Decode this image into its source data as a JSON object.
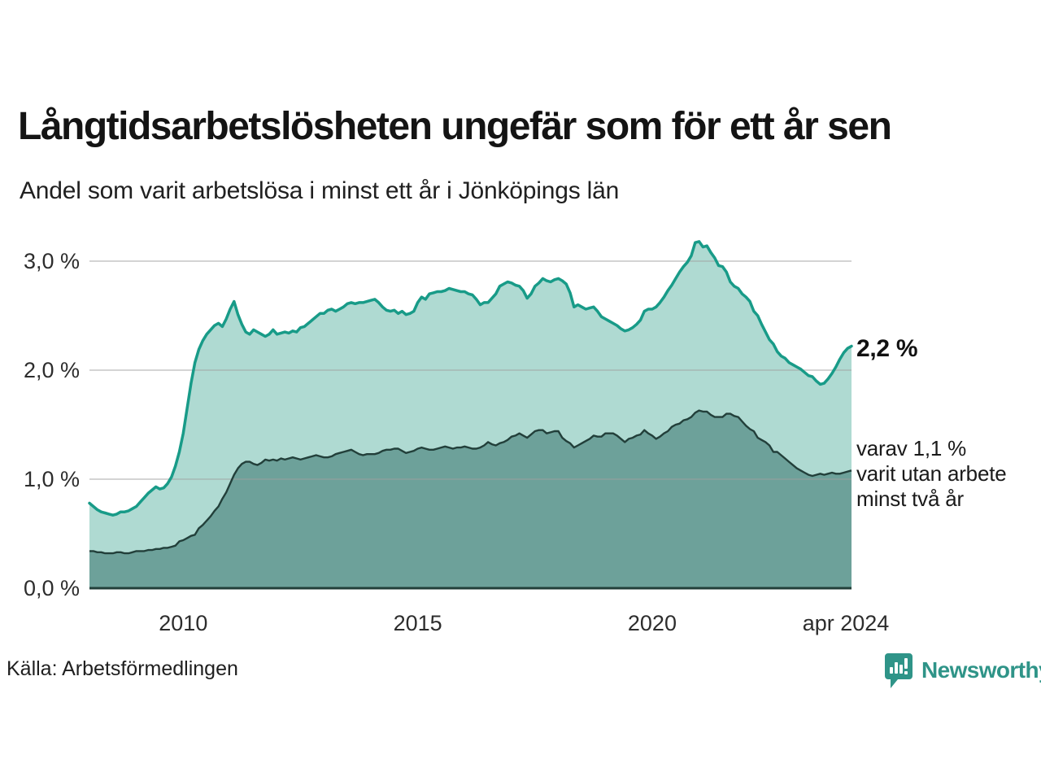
{
  "header": {
    "title": "Långtidsarbetslösheten ungefär som för ett år sen",
    "subtitle": "Andel som varit arbetslösa i minst ett år i Jönköpings län"
  },
  "chart_data": {
    "type": "area",
    "title": "Långtidsarbetslösheten ungefär som för ett år sen",
    "subtitle": "Andel som varit arbetslösa i minst ett år i Jönköpings län",
    "unit": "%",
    "x_start": "2008-01",
    "x_end": "2024-04",
    "x_tick_labels": [
      "2010",
      "2015",
      "2020",
      "apr 2024"
    ],
    "x_tick_month_indices": [
      24,
      84,
      144,
      195
    ],
    "y_tick_labels": [
      "0,0 %",
      "1,0 %",
      "2,0 %",
      "3,0 %"
    ],
    "y_tick_values": [
      0.0,
      1.0,
      2.0,
      3.0
    ],
    "grid_values": [
      1.0,
      2.0,
      3.0
    ],
    "ylim": [
      0,
      3.38
    ],
    "legend_position": "right-annotations",
    "grid": true,
    "colors": {
      "total_line": "#189b88",
      "total_fill": "#afdad2",
      "two_year_line": "#223f3a",
      "two_year_fill": "#6da19a",
      "gridline": "#d8d8d8"
    },
    "series": [
      {
        "name": "Andel arbetslösa minst ett år",
        "latest_label": "2,2 %",
        "values": [
          0.78,
          0.75,
          0.72,
          0.7,
          0.69,
          0.68,
          0.67,
          0.68,
          0.7,
          0.7,
          0.71,
          0.73,
          0.75,
          0.79,
          0.83,
          0.87,
          0.9,
          0.93,
          0.91,
          0.92,
          0.96,
          1.02,
          1.12,
          1.25,
          1.42,
          1.65,
          1.88,
          2.07,
          2.19,
          2.27,
          2.33,
          2.37,
          2.41,
          2.43,
          2.4,
          2.47,
          2.56,
          2.63,
          2.51,
          2.42,
          2.35,
          2.33,
          2.37,
          2.35,
          2.33,
          2.31,
          2.33,
          2.37,
          2.33,
          2.34,
          2.35,
          2.34,
          2.36,
          2.35,
          2.39,
          2.4,
          2.43,
          2.46,
          2.49,
          2.52,
          2.52,
          2.55,
          2.56,
          2.54,
          2.56,
          2.58,
          2.61,
          2.62,
          2.61,
          2.62,
          2.62,
          2.63,
          2.64,
          2.65,
          2.62,
          2.58,
          2.55,
          2.54,
          2.55,
          2.52,
          2.54,
          2.51,
          2.52,
          2.54,
          2.62,
          2.67,
          2.65,
          2.7,
          2.71,
          2.72,
          2.72,
          2.73,
          2.75,
          2.74,
          2.73,
          2.72,
          2.72,
          2.7,
          2.69,
          2.65,
          2.6,
          2.62,
          2.62,
          2.66,
          2.7,
          2.77,
          2.79,
          2.81,
          2.8,
          2.78,
          2.77,
          2.73,
          2.66,
          2.7,
          2.77,
          2.8,
          2.84,
          2.82,
          2.81,
          2.83,
          2.84,
          2.82,
          2.79,
          2.71,
          2.58,
          2.6,
          2.58,
          2.56,
          2.57,
          2.58,
          2.54,
          2.49,
          2.47,
          2.45,
          2.43,
          2.41,
          2.38,
          2.36,
          2.37,
          2.39,
          2.42,
          2.46,
          2.54,
          2.56,
          2.56,
          2.58,
          2.62,
          2.67,
          2.73,
          2.78,
          2.84,
          2.9,
          2.95,
          2.99,
          3.05,
          3.17,
          3.18,
          3.13,
          3.14,
          3.08,
          3.03,
          2.96,
          2.95,
          2.9,
          2.81,
          2.77,
          2.75,
          2.7,
          2.67,
          2.63,
          2.54,
          2.5,
          2.42,
          2.35,
          2.28,
          2.24,
          2.17,
          2.13,
          2.11,
          2.07,
          2.05,
          2.03,
          2.01,
          1.98,
          1.95,
          1.94,
          1.9,
          1.87,
          1.88,
          1.92,
          1.97,
          2.03,
          2.1,
          2.16,
          2.2,
          2.22
        ]
      },
      {
        "name": "Varav utan arbete minst två år",
        "latest_label": "1,1 %",
        "values": [
          0.34,
          0.34,
          0.33,
          0.33,
          0.32,
          0.32,
          0.32,
          0.33,
          0.33,
          0.32,
          0.32,
          0.33,
          0.34,
          0.34,
          0.34,
          0.35,
          0.35,
          0.36,
          0.36,
          0.37,
          0.37,
          0.38,
          0.39,
          0.43,
          0.44,
          0.46,
          0.48,
          0.49,
          0.55,
          0.58,
          0.62,
          0.66,
          0.71,
          0.75,
          0.82,
          0.88,
          0.96,
          1.04,
          1.1,
          1.14,
          1.16,
          1.16,
          1.14,
          1.13,
          1.15,
          1.18,
          1.17,
          1.18,
          1.17,
          1.19,
          1.18,
          1.19,
          1.2,
          1.19,
          1.18,
          1.19,
          1.2,
          1.21,
          1.22,
          1.21,
          1.2,
          1.2,
          1.21,
          1.23,
          1.24,
          1.25,
          1.26,
          1.27,
          1.25,
          1.23,
          1.22,
          1.23,
          1.23,
          1.23,
          1.24,
          1.26,
          1.27,
          1.27,
          1.28,
          1.28,
          1.26,
          1.24,
          1.25,
          1.26,
          1.28,
          1.29,
          1.28,
          1.27,
          1.27,
          1.28,
          1.29,
          1.3,
          1.29,
          1.28,
          1.29,
          1.29,
          1.3,
          1.29,
          1.28,
          1.28,
          1.29,
          1.31,
          1.34,
          1.32,
          1.31,
          1.33,
          1.34,
          1.36,
          1.39,
          1.4,
          1.42,
          1.4,
          1.38,
          1.41,
          1.44,
          1.45,
          1.45,
          1.42,
          1.43,
          1.44,
          1.44,
          1.38,
          1.35,
          1.33,
          1.29,
          1.31,
          1.33,
          1.35,
          1.37,
          1.4,
          1.39,
          1.39,
          1.42,
          1.42,
          1.42,
          1.4,
          1.37,
          1.34,
          1.37,
          1.38,
          1.4,
          1.41,
          1.45,
          1.42,
          1.4,
          1.37,
          1.39,
          1.42,
          1.44,
          1.48,
          1.5,
          1.51,
          1.54,
          1.55,
          1.57,
          1.61,
          1.63,
          1.62,
          1.62,
          1.59,
          1.57,
          1.57,
          1.57,
          1.6,
          1.6,
          1.58,
          1.57,
          1.53,
          1.49,
          1.46,
          1.44,
          1.38,
          1.36,
          1.34,
          1.31,
          1.25,
          1.25,
          1.22,
          1.19,
          1.16,
          1.13,
          1.1,
          1.08,
          1.06,
          1.04,
          1.03,
          1.04,
          1.05,
          1.04,
          1.05,
          1.06,
          1.05,
          1.05,
          1.06,
          1.07,
          1.08
        ]
      }
    ],
    "annotations": {
      "latest_total": "2,2 %",
      "secondary_lines": [
        "varav 1,1 %",
        "varit utan arbete",
        "minst två år"
      ]
    }
  },
  "footer": {
    "source": "Källa: Arbetsförmedlingen",
    "brand": "Newsworthy"
  }
}
